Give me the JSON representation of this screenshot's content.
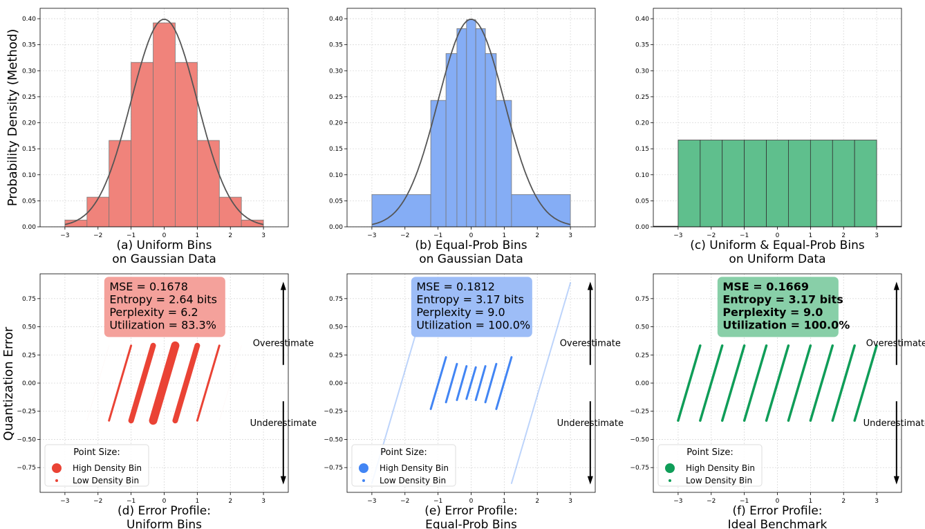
{
  "figure": {
    "ylabel_top": "Probability Density (Method)",
    "ylabel_bottom": "Quantization Error"
  },
  "colors": {
    "red": "#ea4335",
    "blue": "#4285f4",
    "green": "#0f9d58",
    "curve": "#555555"
  },
  "chart_data": [
    {
      "id": "a",
      "type": "bar",
      "title_line1": "(a) Uniform Bins",
      "title_line2": "on Gaussian Data",
      "color": "#f0837b",
      "bin_edges": [
        -3,
        -2.333,
        -1.667,
        -1,
        -0.333,
        0.333,
        1,
        1.667,
        2.333,
        3
      ],
      "values": [
        0.013,
        0.057,
        0.166,
        0.316,
        0.392,
        0.316,
        0.166,
        0.057,
        0.013
      ],
      "curve": "standard normal pdf",
      "xticks": [
        "-3",
        "-2",
        "-1",
        "0",
        "1",
        "2",
        "3"
      ],
      "yticks": [
        "0.00",
        "0.05",
        "0.10",
        "0.15",
        "0.20",
        "0.25",
        "0.30",
        "0.35",
        "0.40"
      ],
      "xlim": [
        -3.75,
        3.75
      ],
      "ylim": [
        0,
        0.42
      ]
    },
    {
      "id": "b",
      "type": "bar",
      "title_line1": "(b) Equal-Prob Bins",
      "title_line2": "on Gaussian Data",
      "color": "#85adf5",
      "bin_edges": [
        -3,
        -1.22,
        -0.76,
        -0.43,
        -0.14,
        0.14,
        0.43,
        0.76,
        1.22,
        3
      ],
      "values": [
        0.062,
        0.243,
        0.333,
        0.381,
        0.398,
        0.381,
        0.333,
        0.243,
        0.062
      ],
      "curve": "standard normal pdf",
      "xticks": [
        "-3",
        "-2",
        "-1",
        "0",
        "1",
        "2",
        "3"
      ],
      "yticks": [
        "0.00",
        "0.05",
        "0.10",
        "0.15",
        "0.20",
        "0.25",
        "0.30",
        "0.35",
        "0.40"
      ],
      "xlim": [
        -3.75,
        3.75
      ],
      "ylim": [
        0,
        0.42
      ]
    },
    {
      "id": "c",
      "type": "bar",
      "title_line1": "(c) Uniform & Equal-Prob Bins",
      "title_line2": "on Uniform Data",
      "color": "#5fbf8d",
      "bin_edges": [
        -3,
        -2.333,
        -1.667,
        -1,
        -0.333,
        0.333,
        1,
        1.667,
        2.333,
        3
      ],
      "values": [
        0.1667,
        0.1667,
        0.1667,
        0.1667,
        0.1667,
        0.1667,
        0.1667,
        0.1667,
        0.1667
      ],
      "xticks": [
        "-3",
        "-2",
        "-1",
        "0",
        "1",
        "2",
        "3"
      ],
      "yticks": [
        "0.00",
        "0.05",
        "0.10",
        "0.15",
        "0.20",
        "0.25",
        "0.30",
        "0.35",
        "0.40"
      ],
      "xlim": [
        -3.75,
        3.75
      ],
      "ylim": [
        0,
        0.42
      ]
    },
    {
      "id": "d",
      "type": "scatter",
      "title_line1": "(d) Error Profile:",
      "title_line2": "Uniform Bins",
      "color": "#ea4335",
      "box_color": "#f4a19b",
      "box_bold": false,
      "stats": [
        "MSE = 0.1678",
        "Entropy = 2.64 bits",
        "Perplexity = 6.2",
        "Utilization = 83.3%"
      ],
      "segments": [
        {
          "x0": -2.333,
          "x1": -1.667,
          "y0": -0.333,
          "y1": 0.333,
          "size": 0.2,
          "alpha": 0.15
        },
        {
          "x0": -1.667,
          "x1": -1,
          "y0": -0.333,
          "y1": 0.333,
          "size": 3,
          "alpha": 1
        },
        {
          "x0": -1,
          "x1": -0.333,
          "y0": -0.333,
          "y1": 0.333,
          "size": 8,
          "alpha": 1
        },
        {
          "x0": -0.333,
          "x1": 0.333,
          "y0": -0.333,
          "y1": 0.333,
          "size": 12,
          "alpha": 1
        },
        {
          "x0": 0.333,
          "x1": 1,
          "y0": -0.333,
          "y1": 0.333,
          "size": 8,
          "alpha": 1
        },
        {
          "x0": 1,
          "x1": 1.667,
          "y0": -0.333,
          "y1": 0.333,
          "size": 3,
          "alpha": 1
        },
        {
          "x0": 1.667,
          "x1": 2.333,
          "y0": -0.333,
          "y1": 0.333,
          "size": 0.2,
          "alpha": 0.15
        }
      ],
      "overestimate": "Overestimate",
      "underestimate": "Underestimate",
      "legend_title": "Point Size:",
      "legend_high": "High Density Bin",
      "legend_low": "Low Density Bin",
      "xticks": [
        "-3",
        "-2",
        "-1",
        "0",
        "1",
        "2",
        "3"
      ],
      "yticks": [
        "-0.75",
        "-0.50",
        "-0.25",
        "0.00",
        "0.25",
        "0.50",
        "0.75"
      ],
      "xlim": [
        -3.75,
        3.75
      ],
      "ylim": [
        -0.97,
        0.97
      ]
    },
    {
      "id": "e",
      "type": "scatter",
      "title_line1": "(e) Error Profile:",
      "title_line2": "Equal-Prob Bins",
      "color": "#4285f4",
      "box_color": "#9dbdf7",
      "box_bold": false,
      "stats": [
        "MSE = 0.1812",
        "Entropy = 3.17 bits",
        "Perplexity = 9.0",
        "Utilization = 100.0%"
      ],
      "segments": [
        {
          "x0": -3,
          "x1": -1.22,
          "y0": -0.89,
          "y1": 0.89,
          "size": 2,
          "alpha": 0.35
        },
        {
          "x0": -1.22,
          "x1": -0.76,
          "y0": -0.23,
          "y1": 0.23,
          "size": 3,
          "alpha": 1
        },
        {
          "x0": -0.76,
          "x1": -0.43,
          "y0": -0.17,
          "y1": 0.17,
          "size": 3,
          "alpha": 1
        },
        {
          "x0": -0.43,
          "x1": -0.14,
          "y0": -0.15,
          "y1": 0.15,
          "size": 3,
          "alpha": 1
        },
        {
          "x0": -0.14,
          "x1": 0.14,
          "y0": -0.14,
          "y1": 0.14,
          "size": 3,
          "alpha": 1
        },
        {
          "x0": 0.14,
          "x1": 0.43,
          "y0": -0.15,
          "y1": 0.15,
          "size": 3,
          "alpha": 1
        },
        {
          "x0": 0.43,
          "x1": 0.76,
          "y0": -0.17,
          "y1": 0.17,
          "size": 3,
          "alpha": 1
        },
        {
          "x0": 0.76,
          "x1": 1.22,
          "y0": -0.23,
          "y1": 0.23,
          "size": 3,
          "alpha": 1
        },
        {
          "x0": 1.22,
          "x1": 3,
          "y0": -0.89,
          "y1": 0.89,
          "size": 2,
          "alpha": 0.35
        }
      ],
      "overestimate": "Overestimate",
      "underestimate": "Underestimate",
      "legend_title": "Point Size:",
      "legend_high": "High Density Bin",
      "legend_low": "Low Density Bin",
      "xticks": [
        "-3",
        "-2",
        "-1",
        "0",
        "1",
        "2",
        "3"
      ],
      "yticks": [
        "-0.75",
        "-0.50",
        "-0.25",
        "0.00",
        "0.25",
        "0.50",
        "0.75"
      ],
      "xlim": [
        -3.75,
        3.75
      ],
      "ylim": [
        -0.97,
        0.97
      ]
    },
    {
      "id": "f",
      "type": "scatter",
      "title_line1": "(f) Error Profile:",
      "title_line2": "Ideal Benchmark",
      "color": "#0f9d58",
      "box_color": "#88cfa8",
      "box_bold": true,
      "stats": [
        "MSE = 0.1669",
        "Entropy = 3.17 bits",
        "Perplexity = 9.0",
        "Utilization = 100.0%"
      ],
      "segments": [
        {
          "x0": -3,
          "x1": -2.333,
          "y0": -0.333,
          "y1": 0.333,
          "size": 3.5,
          "alpha": 1
        },
        {
          "x0": -2.333,
          "x1": -1.667,
          "y0": -0.333,
          "y1": 0.333,
          "size": 3.5,
          "alpha": 1
        },
        {
          "x0": -1.667,
          "x1": -1,
          "y0": -0.333,
          "y1": 0.333,
          "size": 3.5,
          "alpha": 1
        },
        {
          "x0": -1,
          "x1": -0.333,
          "y0": -0.333,
          "y1": 0.333,
          "size": 3.5,
          "alpha": 1
        },
        {
          "x0": -0.333,
          "x1": 0.333,
          "y0": -0.333,
          "y1": 0.333,
          "size": 3.5,
          "alpha": 1
        },
        {
          "x0": 0.333,
          "x1": 1,
          "y0": -0.333,
          "y1": 0.333,
          "size": 3.5,
          "alpha": 1
        },
        {
          "x0": 1,
          "x1": 1.667,
          "y0": -0.333,
          "y1": 0.333,
          "size": 3.5,
          "alpha": 1
        },
        {
          "x0": 1.667,
          "x1": 2.333,
          "y0": -0.333,
          "y1": 0.333,
          "size": 3.5,
          "alpha": 1
        },
        {
          "x0": 2.333,
          "x1": 3,
          "y0": -0.333,
          "y1": 0.333,
          "size": 3.5,
          "alpha": 1
        }
      ],
      "overestimate": "Overestimate",
      "underestimate": "Underestimate",
      "legend_title": "Point Size:",
      "legend_high": "High Density Bin",
      "legend_low": "Low Density Bin",
      "xticks": [
        "-3",
        "-2",
        "-1",
        "0",
        "1",
        "2",
        "3"
      ],
      "yticks": [
        "-0.75",
        "-0.50",
        "-0.25",
        "0.00",
        "0.25",
        "0.50",
        "0.75"
      ],
      "xlim": [
        -3.75,
        3.75
      ],
      "ylim": [
        -0.97,
        0.97
      ]
    }
  ]
}
